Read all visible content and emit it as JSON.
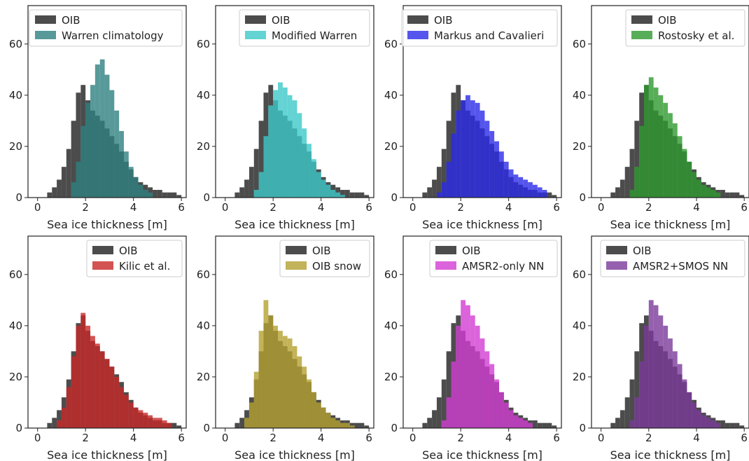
{
  "chart_data": [
    {
      "type": "bar",
      "xlabel": "Sea ice thickness [m]",
      "xticks": [
        "0",
        "2",
        "4",
        "6"
      ],
      "yticks": [
        "0",
        "20",
        "40",
        "60"
      ],
      "xlim": [
        -0.4,
        6.2
      ],
      "ylim": [
        0,
        75
      ],
      "legend_position": "top-right",
      "series": [
        {
          "name": "OIB",
          "color": "#3d3d3d",
          "bins": [
            0.4,
            0.6,
            0.8,
            1.0,
            1.2,
            1.4,
            1.6,
            1.8,
            2.0,
            2.2,
            2.4,
            2.6,
            2.8,
            3.0,
            3.2,
            3.4,
            3.6,
            3.8,
            4.0,
            4.2,
            4.4,
            4.6,
            4.8,
            5.0,
            5.2,
            5.4,
            5.6,
            5.8
          ],
          "values": [
            2,
            4,
            7,
            12,
            19,
            30,
            41,
            44,
            38,
            34,
            32,
            30,
            27,
            24,
            21,
            18,
            14,
            11,
            8,
            6,
            5,
            4,
            3,
            3,
            2,
            2,
            2,
            1
          ]
        },
        {
          "name": "Warren climatology",
          "color": "#2e8080",
          "bins": [
            1.4,
            1.6,
            1.8,
            2.0,
            2.2,
            2.4,
            2.6,
            2.8,
            3.0,
            3.2,
            3.4,
            3.6,
            3.8,
            4.0,
            4.2,
            4.4,
            4.6
          ],
          "values": [
            6,
            14,
            28,
            37,
            44,
            52,
            54,
            48,
            42,
            34,
            26,
            18,
            12,
            8,
            5,
            3,
            2
          ]
        }
      ]
    },
    {
      "type": "bar",
      "xlabel": "Sea ice thickness [m]",
      "xticks": [
        "0",
        "2",
        "4",
        "6"
      ],
      "yticks": [
        "0",
        "20",
        "40",
        "60"
      ],
      "xlim": [
        -0.4,
        6.2
      ],
      "ylim": [
        0,
        75
      ],
      "legend_position": "top-right",
      "series": [
        {
          "name": "OIB",
          "color": "#3d3d3d",
          "bins": [
            0.4,
            0.6,
            0.8,
            1.0,
            1.2,
            1.4,
            1.6,
            1.8,
            2.0,
            2.2,
            2.4,
            2.6,
            2.8,
            3.0,
            3.2,
            3.4,
            3.6,
            3.8,
            4.0,
            4.2,
            4.4,
            4.6,
            4.8,
            5.0,
            5.2,
            5.4,
            5.6,
            5.8
          ],
          "values": [
            2,
            4,
            7,
            12,
            19,
            30,
            41,
            44,
            38,
            34,
            32,
            30,
            27,
            24,
            21,
            18,
            14,
            11,
            8,
            6,
            5,
            4,
            3,
            3,
            2,
            2,
            2,
            1
          ]
        },
        {
          "name": "Modified Warren",
          "color": "#3cc8c8",
          "bins": [
            1.2,
            1.4,
            1.6,
            1.8,
            2.0,
            2.2,
            2.4,
            2.6,
            2.8,
            3.0,
            3.2,
            3.4,
            3.6,
            3.8,
            4.0,
            4.2,
            4.4,
            4.6,
            4.8
          ],
          "values": [
            3,
            10,
            24,
            36,
            42,
            45,
            43,
            40,
            38,
            33,
            27,
            21,
            15,
            10,
            7,
            5,
            3,
            2,
            1
          ]
        }
      ]
    },
    {
      "type": "bar",
      "xlabel": "Sea ice thickness [m]",
      "xticks": [
        "0",
        "2",
        "4",
        "6"
      ],
      "yticks": [
        "0",
        "20",
        "40",
        "60"
      ],
      "xlim": [
        -0.4,
        6.2
      ],
      "ylim": [
        0,
        75
      ],
      "legend_position": "top-right",
      "series": [
        {
          "name": "OIB",
          "color": "#3d3d3d",
          "bins": [
            0.4,
            0.6,
            0.8,
            1.0,
            1.2,
            1.4,
            1.6,
            1.8,
            2.0,
            2.2,
            2.4,
            2.6,
            2.8,
            3.0,
            3.2,
            3.4,
            3.6,
            3.8,
            4.0,
            4.2,
            4.4,
            4.6,
            4.8,
            5.0,
            5.2,
            5.4,
            5.6,
            5.8
          ],
          "values": [
            2,
            4,
            7,
            12,
            19,
            30,
            41,
            44,
            38,
            34,
            32,
            30,
            27,
            24,
            21,
            18,
            14,
            11,
            8,
            6,
            5,
            4,
            3,
            3,
            2,
            2,
            2,
            1
          ]
        },
        {
          "name": "Markus and Cavalieri",
          "color": "#2a2ae8",
          "bins": [
            1.0,
            1.2,
            1.4,
            1.6,
            1.8,
            2.0,
            2.2,
            2.4,
            2.6,
            2.8,
            3.0,
            3.2,
            3.4,
            3.6,
            3.8,
            4.0,
            4.2,
            4.4,
            4.6,
            4.8,
            5.0,
            5.2,
            5.4
          ],
          "values": [
            2,
            6,
            14,
            25,
            34,
            38,
            40,
            38,
            37,
            34,
            30,
            26,
            22,
            18,
            14,
            11,
            9,
            8,
            7,
            6,
            5,
            4,
            3
          ]
        }
      ]
    },
    {
      "type": "bar",
      "xlabel": "Sea ice thickness [m]",
      "xticks": [
        "0",
        "2",
        "4",
        "6"
      ],
      "yticks": [
        "0",
        "20",
        "40",
        "60"
      ],
      "xlim": [
        -0.4,
        6.2
      ],
      "ylim": [
        0,
        75
      ],
      "legend_position": "top-right",
      "series": [
        {
          "name": "OIB",
          "color": "#3d3d3d",
          "bins": [
            0.4,
            0.6,
            0.8,
            1.0,
            1.2,
            1.4,
            1.6,
            1.8,
            2.0,
            2.2,
            2.4,
            2.6,
            2.8,
            3.0,
            3.2,
            3.4,
            3.6,
            3.8,
            4.0,
            4.2,
            4.4,
            4.6,
            4.8,
            5.0,
            5.2,
            5.4,
            5.6,
            5.8
          ],
          "values": [
            2,
            4,
            7,
            12,
            19,
            30,
            41,
            44,
            38,
            34,
            32,
            30,
            27,
            24,
            21,
            18,
            14,
            11,
            8,
            6,
            5,
            4,
            3,
            3,
            2,
            2,
            2,
            1
          ]
        },
        {
          "name": "Rostosky et al.",
          "color": "#2e9a2e",
          "bins": [
            1.2,
            1.4,
            1.6,
            1.8,
            2.0,
            2.2,
            2.4,
            2.6,
            2.8,
            3.0,
            3.2,
            3.4,
            3.6,
            3.8,
            4.0,
            4.2,
            4.4,
            4.6,
            4.8
          ],
          "values": [
            3,
            12,
            28,
            44,
            47,
            43,
            40,
            37,
            33,
            29,
            24,
            19,
            14,
            10,
            7,
            5,
            4,
            3,
            2
          ]
        }
      ]
    },
    {
      "type": "bar",
      "xlabel": "Sea ice thickness [m]",
      "xticks": [
        "0",
        "2",
        "4",
        "6"
      ],
      "yticks": [
        "0",
        "20",
        "40",
        "60"
      ],
      "xlim": [
        -0.4,
        6.2
      ],
      "ylim": [
        0,
        75
      ],
      "legend_position": "top-right",
      "series": [
        {
          "name": "OIB",
          "color": "#3d3d3d",
          "bins": [
            0.4,
            0.6,
            0.8,
            1.0,
            1.2,
            1.4,
            1.6,
            1.8,
            2.0,
            2.2,
            2.4,
            2.6,
            2.8,
            3.0,
            3.2,
            3.4,
            3.6,
            3.8,
            4.0,
            4.2,
            4.4,
            4.6,
            4.8,
            5.0,
            5.2,
            5.4,
            5.6,
            5.8
          ],
          "values": [
            2,
            4,
            7,
            12,
            19,
            30,
            41,
            44,
            38,
            34,
            32,
            30,
            27,
            24,
            21,
            18,
            14,
            11,
            8,
            6,
            5,
            4,
            3,
            3,
            2,
            2,
            2,
            1
          ]
        },
        {
          "name": "Kilic et al.",
          "color": "#c82828",
          "bins": [
            0.8,
            1.0,
            1.2,
            1.4,
            1.6,
            1.8,
            2.0,
            2.2,
            2.4,
            2.6,
            2.8,
            3.0,
            3.2,
            3.4,
            3.6,
            3.8,
            4.0,
            4.2,
            4.4,
            4.6,
            4.8,
            5.0,
            5.2,
            5.4
          ],
          "values": [
            3,
            8,
            16,
            28,
            40,
            45,
            40,
            36,
            33,
            30,
            27,
            24,
            20,
            16,
            13,
            10,
            8,
            7,
            6,
            5,
            4,
            4,
            3,
            2
          ]
        }
      ]
    },
    {
      "type": "bar",
      "xlabel": "Sea ice thickness [m]",
      "xticks": [
        "0",
        "2",
        "4",
        "6"
      ],
      "yticks": [
        "0",
        "20",
        "40",
        "60"
      ],
      "xlim": [
        -0.4,
        6.2
      ],
      "ylim": [
        0,
        75
      ],
      "legend_position": "top-right",
      "series": [
        {
          "name": "OIB",
          "color": "#3d3d3d",
          "bins": [
            0.4,
            0.6,
            0.8,
            1.0,
            1.2,
            1.4,
            1.6,
            1.8,
            2.0,
            2.2,
            2.4,
            2.6,
            2.8,
            3.0,
            3.2,
            3.4,
            3.6,
            3.8,
            4.0,
            4.2,
            4.4,
            4.6,
            4.8,
            5.0,
            5.2,
            5.4,
            5.6,
            5.8
          ],
          "values": [
            2,
            4,
            7,
            12,
            19,
            30,
            41,
            44,
            38,
            34,
            32,
            30,
            27,
            24,
            21,
            18,
            14,
            11,
            8,
            6,
            5,
            4,
            3,
            3,
            2,
            2,
            2,
            1
          ]
        },
        {
          "name": "OIB snow",
          "color": "#b4a030",
          "bins": [
            0.8,
            1.0,
            1.2,
            1.4,
            1.6,
            1.8,
            2.0,
            2.2,
            2.4,
            2.6,
            2.8,
            3.0,
            3.2,
            3.4,
            3.6,
            3.8,
            4.0,
            4.2,
            4.4,
            4.6,
            4.8,
            5.0,
            5.2
          ],
          "values": [
            4,
            10,
            22,
            38,
            50,
            44,
            40,
            38,
            36,
            35,
            32,
            28,
            24,
            19,
            14,
            10,
            8,
            6,
            4,
            3,
            2,
            2,
            1
          ]
        }
      ]
    },
    {
      "type": "bar",
      "xlabel": "Sea ice thickness [m]",
      "xticks": [
        "0",
        "2",
        "4",
        "6"
      ],
      "yticks": [
        "0",
        "20",
        "40",
        "60"
      ],
      "xlim": [
        -0.4,
        6.2
      ],
      "ylim": [
        0,
        75
      ],
      "legend_position": "top-right",
      "series": [
        {
          "name": "OIB",
          "color": "#3d3d3d",
          "bins": [
            0.4,
            0.6,
            0.8,
            1.0,
            1.2,
            1.4,
            1.6,
            1.8,
            2.0,
            2.2,
            2.4,
            2.6,
            2.8,
            3.0,
            3.2,
            3.4,
            3.6,
            3.8,
            4.0,
            4.2,
            4.4,
            4.6,
            4.8,
            5.0,
            5.2,
            5.4,
            5.6,
            5.8
          ],
          "values": [
            2,
            4,
            7,
            12,
            19,
            30,
            41,
            44,
            38,
            34,
            32,
            30,
            27,
            24,
            21,
            18,
            14,
            11,
            8,
            6,
            5,
            4,
            3,
            3,
            2,
            2,
            2,
            1
          ]
        },
        {
          "name": "AMSR2-only NN",
          "color": "#d23cd2",
          "bins": [
            1.2,
            1.4,
            1.6,
            1.8,
            2.0,
            2.2,
            2.4,
            2.6,
            2.8,
            3.0,
            3.2,
            3.4,
            3.6,
            3.8,
            4.0,
            4.2,
            4.4,
            4.6,
            4.8
          ],
          "values": [
            3,
            12,
            26,
            40,
            50,
            48,
            44,
            40,
            35,
            30,
            25,
            19,
            14,
            10,
            7,
            5,
            4,
            3,
            2
          ]
        }
      ]
    },
    {
      "type": "bar",
      "xlabel": "Sea ice thickness [m]",
      "xticks": [
        "0",
        "2",
        "4",
        "6"
      ],
      "yticks": [
        "0",
        "20",
        "40",
        "60"
      ],
      "xlim": [
        -0.4,
        6.2
      ],
      "ylim": [
        0,
        75
      ],
      "legend_position": "top-right",
      "series": [
        {
          "name": "OIB",
          "color": "#3d3d3d",
          "bins": [
            0.4,
            0.6,
            0.8,
            1.0,
            1.2,
            1.4,
            1.6,
            1.8,
            2.0,
            2.2,
            2.4,
            2.6,
            2.8,
            3.0,
            3.2,
            3.4,
            3.6,
            3.8,
            4.0,
            4.2,
            4.4,
            4.6,
            4.8,
            5.0,
            5.2,
            5.4,
            5.6,
            5.8
          ],
          "values": [
            2,
            4,
            7,
            12,
            19,
            30,
            41,
            44,
            38,
            34,
            32,
            30,
            27,
            24,
            21,
            18,
            14,
            11,
            8,
            6,
            5,
            4,
            3,
            3,
            2,
            2,
            2,
            1
          ]
        },
        {
          "name": "AMSR2+SMOS NN",
          "color": "#7a3a9a",
          "bins": [
            1.2,
            1.4,
            1.6,
            1.8,
            2.0,
            2.2,
            2.4,
            2.6,
            2.8,
            3.0,
            3.2,
            3.4,
            3.6,
            3.8,
            4.0,
            4.2,
            4.4,
            4.6,
            4.8
          ],
          "values": [
            3,
            12,
            26,
            40,
            50,
            48,
            44,
            40,
            35,
            30,
            25,
            19,
            14,
            10,
            7,
            5,
            4,
            3,
            2
          ]
        }
      ]
    }
  ]
}
